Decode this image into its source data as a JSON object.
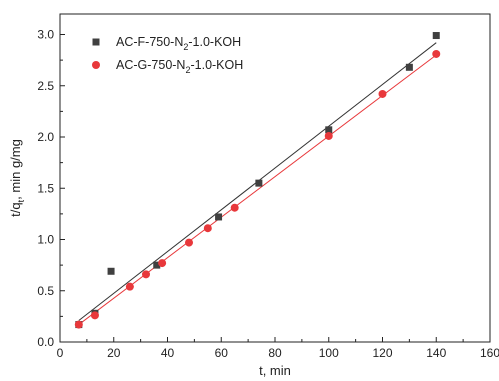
{
  "chart_data": {
    "type": "scatter",
    "title": "",
    "xlabel": "t, min",
    "ylabel_parts": [
      "t/q",
      "t",
      ", min g/mg"
    ],
    "xlim": [
      0,
      160
    ],
    "ylim": [
      0,
      3.2
    ],
    "x_ticks": [
      "0",
      "20",
      "40",
      "60",
      "80",
      "100",
      "120",
      "140",
      "160"
    ],
    "y_ticks": [
      "0.0",
      "0.5",
      "1.0",
      "1.5",
      "2.0",
      "2.5",
      "3.0"
    ],
    "grid": false,
    "legend_position": "top-left",
    "series": [
      {
        "name_parts": [
          "AC-F-750-N",
          "2",
          "-1.0-KOH"
        ],
        "marker": "square",
        "color": "#404040",
        "fit_color": "#333333",
        "x": [
          7,
          13,
          19,
          36,
          59,
          74,
          100,
          130,
          140
        ],
        "y": [
          0.17,
          0.28,
          0.69,
          0.75,
          1.22,
          1.55,
          2.07,
          2.68,
          2.99
        ],
        "fit_line": {
          "x": [
            7,
            140
          ],
          "y": [
            0.21,
            2.92
          ]
        }
      },
      {
        "name_parts": [
          "AC-G-750-N",
          "2",
          "-1.0-KOH"
        ],
        "marker": "circle",
        "color": "#e8383b",
        "fit_color": "#e8383b",
        "x": [
          7,
          13,
          26,
          32,
          38,
          48,
          55,
          65,
          100,
          120,
          140
        ],
        "y": [
          0.17,
          0.26,
          0.54,
          0.66,
          0.77,
          0.97,
          1.11,
          1.31,
          2.01,
          2.42,
          2.81
        ],
        "fit_line": {
          "x": [
            7,
            140
          ],
          "y": [
            0.17,
            2.8
          ]
        }
      }
    ]
  }
}
